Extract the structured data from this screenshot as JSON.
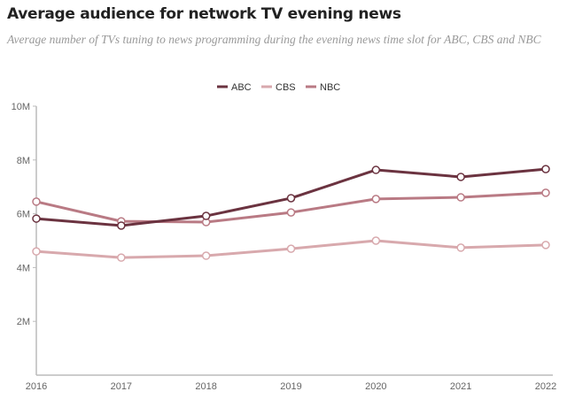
{
  "title": "Average audience for network TV evening news",
  "subtitle": "Average number of TVs tuning to news programming during the evening news time slot for ABC, CBS and NBC",
  "chart_data": {
    "type": "line",
    "title": "Average audience for network TV evening news",
    "x": [
      "2016",
      "2017",
      "2018",
      "2019",
      "2020",
      "2021",
      "2022"
    ],
    "ylim": [
      0,
      10000000
    ],
    "yticks": [
      {
        "v": 2000000,
        "label": "2M"
      },
      {
        "v": 4000000,
        "label": "4M"
      },
      {
        "v": 6000000,
        "label": "6M"
      },
      {
        "v": 8000000,
        "label": "8M"
      },
      {
        "v": 10000000,
        "label": "10M"
      }
    ],
    "grid": false,
    "legend": "top-center",
    "series": [
      {
        "name": "ABC",
        "color": "#6b3340",
        "values": [
          5820000,
          5560000,
          5920000,
          6580000,
          7630000,
          7370000,
          7660000
        ]
      },
      {
        "name": "CBS",
        "color": "#d8a9ad",
        "values": [
          4600000,
          4370000,
          4440000,
          4700000,
          5000000,
          4740000,
          4840000
        ]
      },
      {
        "name": "NBC",
        "color": "#b97a84",
        "values": [
          6450000,
          5720000,
          5690000,
          6050000,
          6550000,
          6610000,
          6780000
        ]
      }
    ]
  }
}
